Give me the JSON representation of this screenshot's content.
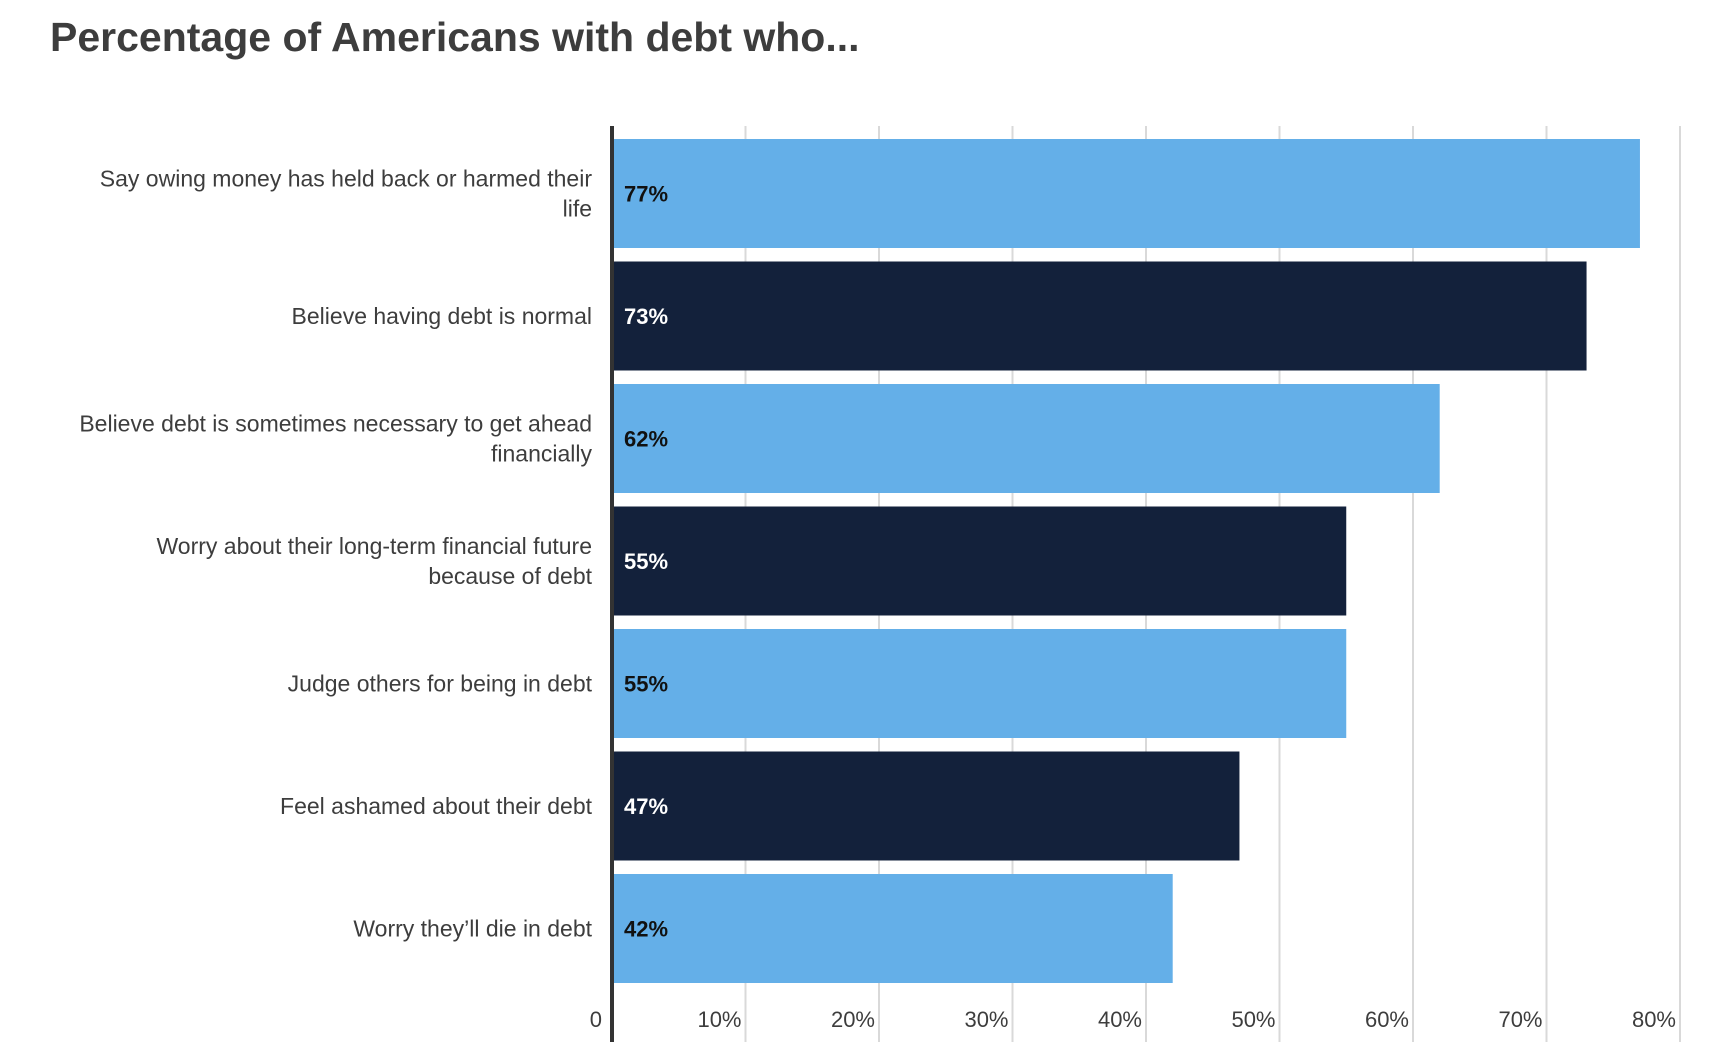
{
  "chart_data": {
    "type": "bar",
    "orientation": "horizontal",
    "title": "Percentage of Americans with debt who...",
    "categories": [
      [
        "Say owing money has held back or harmed their",
        "life"
      ],
      [
        "Believe having debt is normal"
      ],
      [
        "Believe debt is sometimes necessary to get ahead",
        "financially"
      ],
      [
        "Worry about their long-term financial future",
        "because of debt"
      ],
      [
        "Judge others for being in debt"
      ],
      [
        "Feel ashamed about their debt"
      ],
      [
        "Worry they’ll die in debt"
      ]
    ],
    "values": [
      77,
      73,
      62,
      55,
      55,
      47,
      42
    ],
    "data_labels": [
      "77%",
      "73%",
      "62%",
      "55%",
      "55%",
      "47%",
      "42%"
    ],
    "bar_colors": [
      "#64afe8",
      "#13213b",
      "#64afe8",
      "#13213b",
      "#64afe8",
      "#13213b",
      "#64afe8"
    ],
    "label_colors": [
      "#111111",
      "#ffffff",
      "#111111",
      "#ffffff",
      "#111111",
      "#ffffff",
      "#111111"
    ],
    "xlim": [
      0,
      80
    ],
    "x_ticks": [
      0,
      10,
      20,
      30,
      40,
      50,
      60,
      70,
      80
    ],
    "x_tick_labels": [
      "0",
      "10%",
      "20%",
      "30%",
      "40%",
      "50%",
      "60%",
      "70%",
      "80%"
    ],
    "xlabel": "",
    "ylabel": "",
    "grid": true,
    "grid_color": "#d9d9d9",
    "axis_color": "#333333",
    "legend": "none"
  }
}
